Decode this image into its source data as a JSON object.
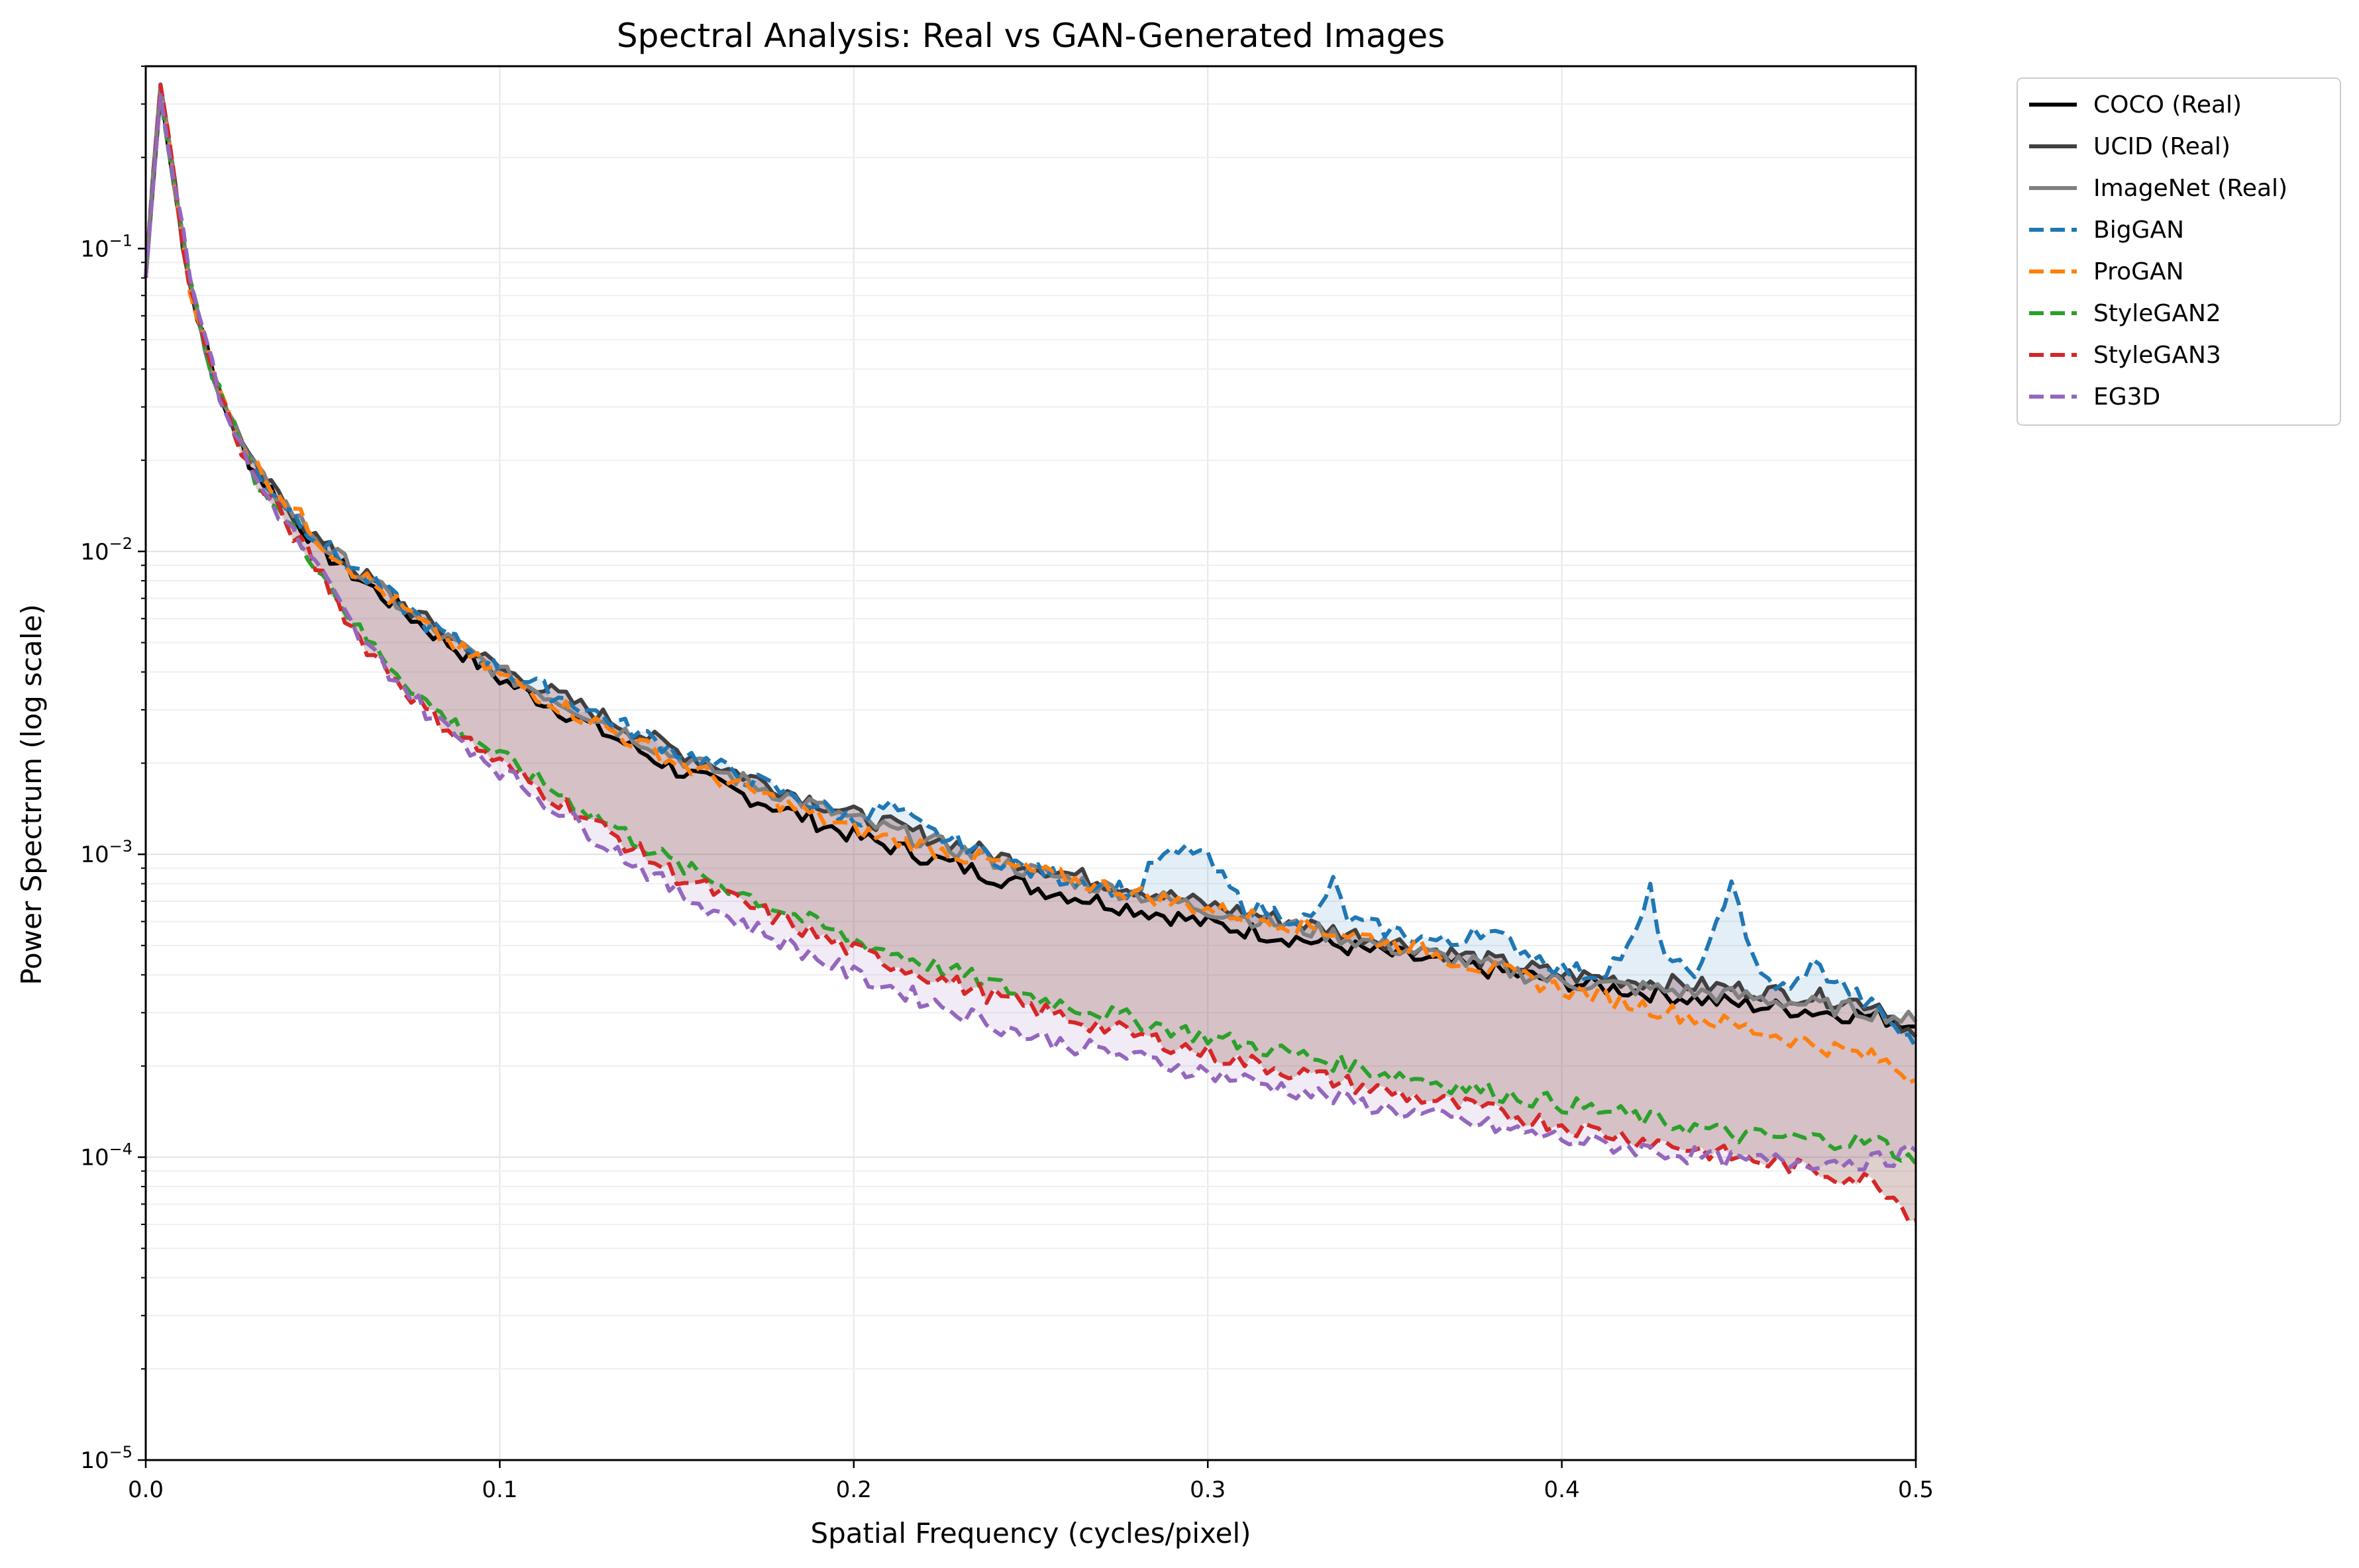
{
  "chart_data": {
    "type": "line",
    "title": "Spectral Analysis: Real vs GAN-Generated Images",
    "xlabel": "Spatial Frequency (cycles/pixel)",
    "ylabel": "Power Spectrum (log scale)",
    "xlim": [
      0.0,
      0.5
    ],
    "ylim": [
      1e-05,
      0.4
    ],
    "yscale": "log",
    "grid": true,
    "legend_position": "outside-top-right",
    "x_ticks": [
      "0.0",
      "0.1",
      "0.2",
      "0.3",
      "0.4",
      "0.5"
    ],
    "y_ticks": [
      {
        "base": "10",
        "exp": "−5"
      },
      {
        "base": "10",
        "exp": "−4"
      },
      {
        "base": "10",
        "exp": "−3"
      },
      {
        "base": "10",
        "exp": "−2"
      },
      {
        "base": "10",
        "exp": "−1"
      }
    ],
    "series": [
      {
        "name": "COCO (Real)",
        "color": "#000000",
        "style": "solid",
        "x": [
          0.0,
          0.004,
          0.012,
          0.02,
          0.03,
          0.05,
          0.08,
          0.1,
          0.15,
          0.2,
          0.25,
          0.3,
          0.35,
          0.4,
          0.45,
          0.49,
          0.5
        ],
        "y": [
          0.08,
          0.35,
          0.08,
          0.035,
          0.019,
          0.01,
          0.0055,
          0.0038,
          0.0019,
          0.00115,
          0.00078,
          0.00059,
          0.00047,
          0.00038,
          0.00032,
          0.00029,
          0.00027
        ]
      },
      {
        "name": "UCID (Real)",
        "color": "#404040",
        "style": "solid",
        "x": [
          0.0,
          0.004,
          0.012,
          0.02,
          0.03,
          0.05,
          0.08,
          0.1,
          0.15,
          0.2,
          0.25,
          0.3,
          0.35,
          0.4,
          0.45,
          0.49,
          0.5
        ],
        "y": [
          0.08,
          0.35,
          0.08,
          0.035,
          0.019,
          0.0105,
          0.0058,
          0.0041,
          0.0022,
          0.00135,
          0.00092,
          0.00068,
          0.00052,
          0.0004,
          0.00036,
          0.00032,
          0.00025
        ]
      },
      {
        "name": "ImageNet (Real)",
        "color": "#808080",
        "style": "solid",
        "x": [
          0.0,
          0.004,
          0.012,
          0.02,
          0.03,
          0.05,
          0.08,
          0.1,
          0.15,
          0.2,
          0.25,
          0.3,
          0.35,
          0.4,
          0.45,
          0.49,
          0.5
        ],
        "y": [
          0.08,
          0.35,
          0.08,
          0.035,
          0.019,
          0.0105,
          0.0056,
          0.004,
          0.0021,
          0.0013,
          0.00088,
          0.00066,
          0.0005,
          0.00038,
          0.00034,
          0.0003,
          0.00028
        ]
      },
      {
        "name": "BigGAN",
        "color": "#1f77b4",
        "style": "dashed",
        "x": [
          0.0,
          0.004,
          0.012,
          0.02,
          0.03,
          0.05,
          0.08,
          0.1,
          0.15,
          0.2,
          0.21,
          0.22,
          0.25,
          0.28,
          0.285,
          0.297,
          0.31,
          0.33,
          0.335,
          0.34,
          0.37,
          0.375,
          0.4,
          0.41,
          0.42,
          0.425,
          0.43,
          0.44,
          0.448,
          0.455,
          0.465,
          0.47,
          0.49,
          0.5
        ],
        "y": [
          0.08,
          0.35,
          0.08,
          0.035,
          0.019,
          0.0105,
          0.0057,
          0.0041,
          0.0022,
          0.0013,
          0.00145,
          0.0012,
          0.00088,
          0.00075,
          0.00095,
          0.00105,
          0.00068,
          0.0006,
          0.00082,
          0.0006,
          0.0005,
          0.00058,
          0.00042,
          0.0004,
          0.0005,
          0.00075,
          0.00042,
          0.00042,
          0.00085,
          0.0004,
          0.00035,
          0.00044,
          0.0003,
          0.00023
        ]
      },
      {
        "name": "ProGAN",
        "color": "#ff7f0e",
        "style": "dashed",
        "x": [
          0.0,
          0.004,
          0.012,
          0.02,
          0.03,
          0.05,
          0.08,
          0.1,
          0.15,
          0.2,
          0.25,
          0.3,
          0.35,
          0.4,
          0.45,
          0.49,
          0.5
        ],
        "y": [
          0.08,
          0.35,
          0.08,
          0.035,
          0.02,
          0.0106,
          0.0055,
          0.0039,
          0.002,
          0.0012,
          0.00088,
          0.00066,
          0.00052,
          0.00036,
          0.00027,
          0.00021,
          0.00018
        ]
      },
      {
        "name": "StyleGAN2",
        "color": "#2ca02c",
        "style": "dashed",
        "x": [
          0.0,
          0.004,
          0.012,
          0.02,
          0.03,
          0.05,
          0.06,
          0.08,
          0.1,
          0.15,
          0.2,
          0.25,
          0.3,
          0.35,
          0.4,
          0.45,
          0.49,
          0.5
        ],
        "y": [
          0.08,
          0.35,
          0.08,
          0.035,
          0.018,
          0.0085,
          0.0055,
          0.0031,
          0.0021,
          0.00092,
          0.00052,
          0.00034,
          0.00025,
          0.00019,
          0.00015,
          0.000118,
          0.000112,
          9.5e-05
        ]
      },
      {
        "name": "StyleGAN3",
        "color": "#d62728",
        "style": "dashed",
        "x": [
          0.0,
          0.004,
          0.012,
          0.02,
          0.03,
          0.05,
          0.06,
          0.08,
          0.1,
          0.15,
          0.2,
          0.25,
          0.3,
          0.35,
          0.4,
          0.45,
          0.49,
          0.5
        ],
        "y": [
          0.08,
          0.36,
          0.08,
          0.035,
          0.018,
          0.0083,
          0.0052,
          0.0029,
          0.002,
          0.00085,
          0.00048,
          0.00031,
          0.00022,
          0.000165,
          0.000128,
          0.0001,
          8.2e-05,
          6.2e-05
        ]
      },
      {
        "name": "EG3D",
        "color": "#9467bd",
        "style": "dashed",
        "x": [
          0.0,
          0.004,
          0.012,
          0.02,
          0.03,
          0.05,
          0.06,
          0.08,
          0.1,
          0.15,
          0.2,
          0.25,
          0.3,
          0.35,
          0.4,
          0.45,
          0.49,
          0.5
        ],
        "y": [
          0.08,
          0.33,
          0.09,
          0.035,
          0.018,
          0.0083,
          0.0052,
          0.0029,
          0.0019,
          0.00075,
          0.0004,
          0.00025,
          0.00019,
          0.000145,
          0.000115,
          9.7e-05,
          9.7e-05,
          0.000105
        ]
      }
    ]
  }
}
